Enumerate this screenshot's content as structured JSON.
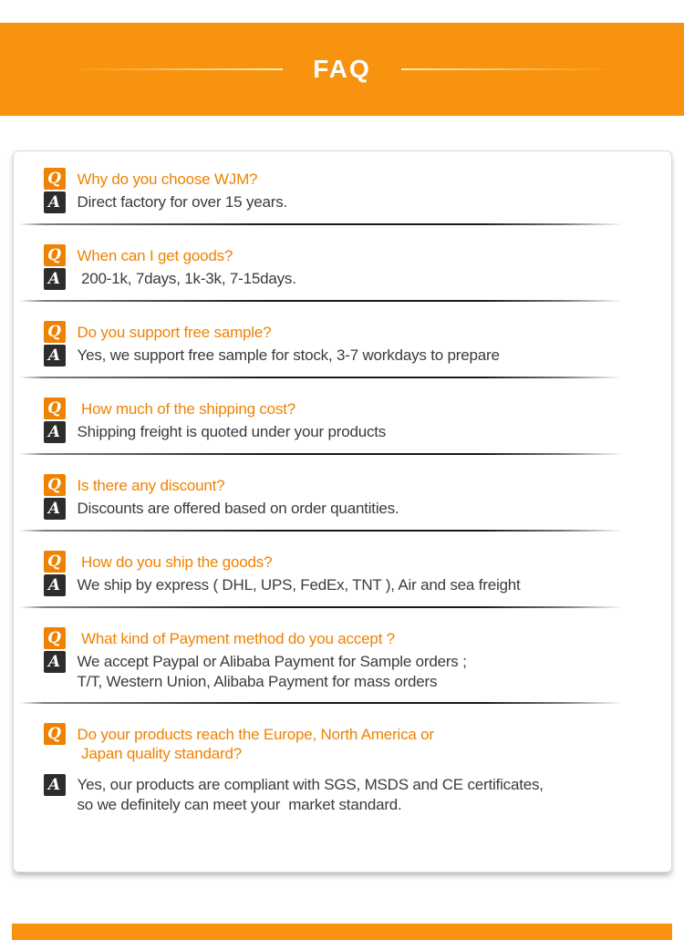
{
  "header": {
    "title": "FAQ",
    "banner_color": "#F7930E",
    "line_color": "#FFF0B8"
  },
  "faq": {
    "q_badge": "Q",
    "a_badge": "A",
    "q_color": "#EF8201",
    "q_badge_bg": "#EF8201",
    "a_badge_bg": "#2D2D2D",
    "answer_color": "#3B3B3B",
    "items": [
      {
        "question_lines": [
          "Why do you choose WJM?"
        ],
        "answer_lines": [
          "Direct factory for over 15 years."
        ]
      },
      {
        "question_lines": [
          "When can I get goods?"
        ],
        "answer_lines": [
          " 200-1k, 7days, 1k-3k, 7-15days."
        ]
      },
      {
        "question_lines": [
          "Do you support free sample?"
        ],
        "answer_lines": [
          "Yes, we support free sample for stock, 3-7 workdays to prepare"
        ]
      },
      {
        "question_lines": [
          " How much of the shipping cost?"
        ],
        "answer_lines": [
          "Shipping freight is quoted under your products"
        ]
      },
      {
        "question_lines": [
          "Is there any discount?"
        ],
        "answer_lines": [
          "Discounts are offered based on order quantities."
        ]
      },
      {
        "question_lines": [
          " How do you ship the goods?"
        ],
        "answer_lines": [
          "We ship by express ( DHL, UPS, FedEx, TNT ), Air and sea freight"
        ]
      },
      {
        "question_lines": [
          " What kind of Payment method do you accept ?"
        ],
        "answer_lines": [
          "We accept Paypal or Alibaba Payment for Sample orders ;",
          "T/T, Western Union, Alibaba Payment for mass orders"
        ]
      },
      {
        "question_lines": [
          "Do your products reach the Europe, North America or",
          " Japan quality standard?"
        ],
        "answer_lines": [
          "Yes, our products are compliant with SGS, MSDS and CE certificates,",
          "so we definitely can meet your  market standard."
        ]
      }
    ]
  },
  "footer": {
    "bar_color": "#F7930E"
  }
}
